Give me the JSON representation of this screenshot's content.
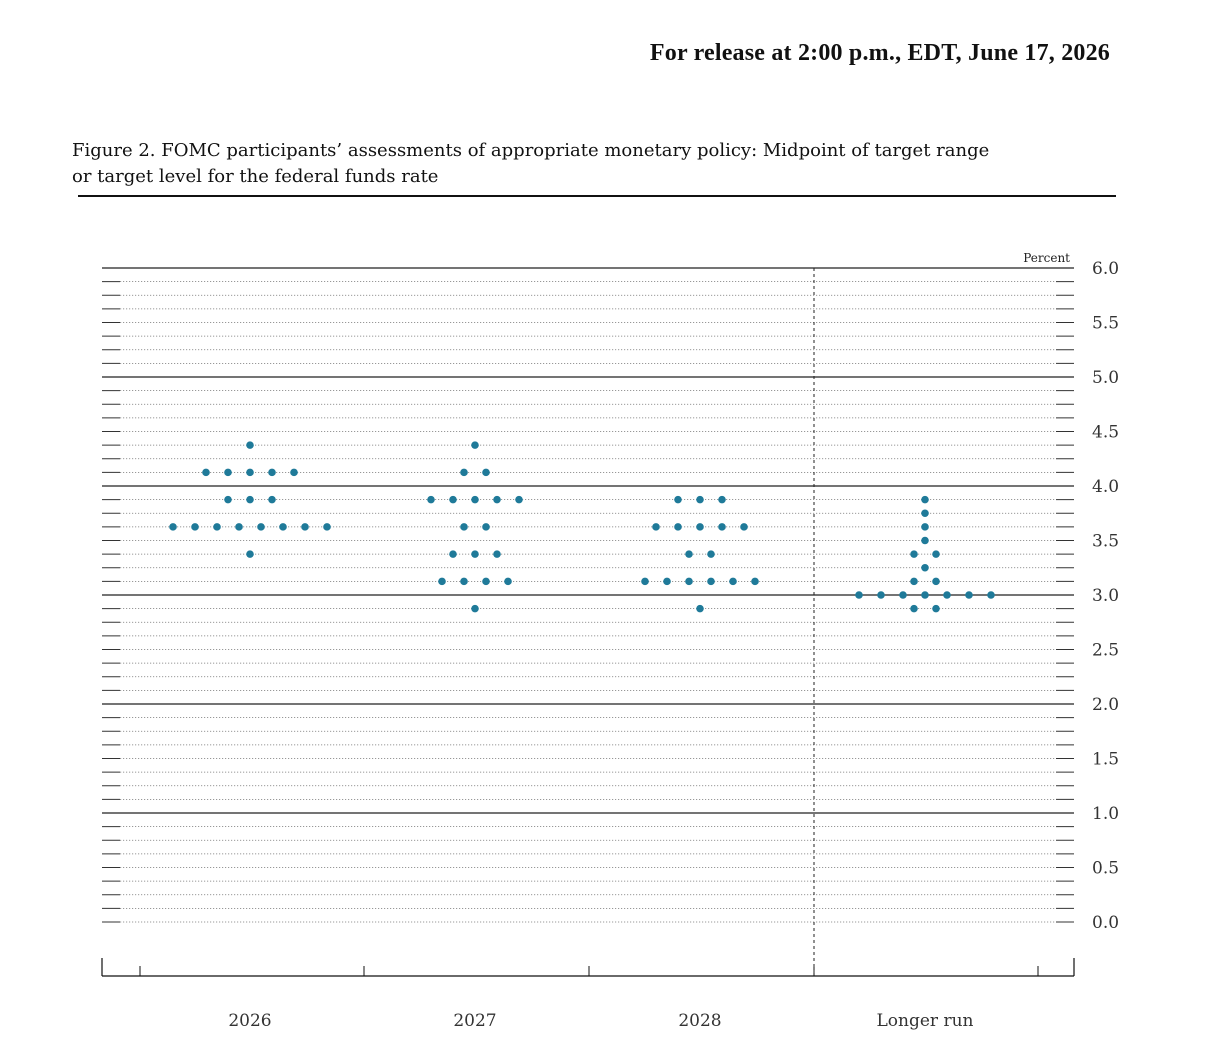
{
  "release_line": "For release at 2:00 p.m., EDT, June 17, 2026",
  "figure_caption": {
    "line1": "Figure 2. FOMC participants’ assessments of appropriate monetary policy: Midpoint of target range",
    "line2": "or target level for the federal funds rate"
  },
  "chart_data": {
    "type": "scatter",
    "subtype": "dot-plot",
    "ylabel": "Percent",
    "ylim": [
      0.0,
      6.0
    ],
    "y_tick_step": 0.125,
    "y_tick_labels": [
      "0.0",
      "0.5",
      "1.0",
      "1.5",
      "2.0",
      "2.5",
      "3.0",
      "3.5",
      "4.0",
      "4.5",
      "5.0",
      "5.5",
      "6.0"
    ],
    "grid": "solid at whole percents, dotted at eighths",
    "categories": [
      "2026",
      "2027",
      "2028",
      "Longer run"
    ],
    "separator_before_category": "Longer run",
    "dot_color": "#1f7a99",
    "series": [
      {
        "category": "2026",
        "levels": [
          {
            "y": 4.375,
            "count": 1
          },
          {
            "y": 4.125,
            "count": 5
          },
          {
            "y": 3.875,
            "count": 3
          },
          {
            "y": 3.625,
            "count": 8
          },
          {
            "y": 3.375,
            "count": 1
          }
        ]
      },
      {
        "category": "2027",
        "levels": [
          {
            "y": 4.375,
            "count": 1
          },
          {
            "y": 4.125,
            "count": 2
          },
          {
            "y": 3.875,
            "count": 5
          },
          {
            "y": 3.625,
            "count": 2
          },
          {
            "y": 3.375,
            "count": 3
          },
          {
            "y": 3.125,
            "count": 4
          },
          {
            "y": 2.875,
            "count": 1
          }
        ]
      },
      {
        "category": "2028",
        "levels": [
          {
            "y": 3.875,
            "count": 3
          },
          {
            "y": 3.625,
            "count": 5
          },
          {
            "y": 3.375,
            "count": 2
          },
          {
            "y": 3.125,
            "count": 6
          },
          {
            "y": 2.875,
            "count": 1
          }
        ]
      },
      {
        "category": "Longer run",
        "levels": [
          {
            "y": 3.875,
            "count": 1
          },
          {
            "y": 3.75,
            "count": 1
          },
          {
            "y": 3.625,
            "count": 1
          },
          {
            "y": 3.5,
            "count": 1
          },
          {
            "y": 3.375,
            "count": 2
          },
          {
            "y": 3.25,
            "count": 1
          },
          {
            "y": 3.125,
            "count": 2
          },
          {
            "y": 3.0,
            "count": 7
          },
          {
            "y": 2.875,
            "count": 2
          }
        ]
      }
    ]
  }
}
